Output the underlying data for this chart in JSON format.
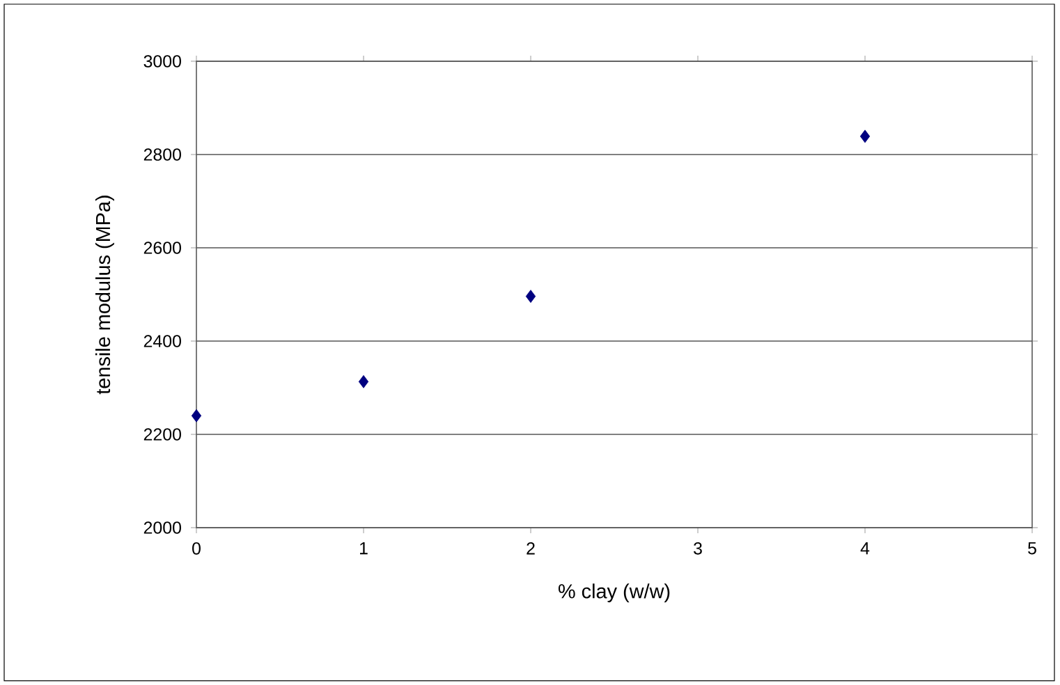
{
  "chart_data": {
    "type": "scatter",
    "xlabel": "% clay (w/w)",
    "ylabel": "tensile modulus (MPa)",
    "x": [
      0,
      1,
      2,
      4
    ],
    "series": [
      {
        "color": "#000080",
        "values": [
          2240,
          2313,
          2496,
          2839
        ]
      }
    ],
    "xlim": [
      0,
      5
    ],
    "ylim": [
      2000,
      3000
    ],
    "xticks": [
      0,
      1,
      2,
      3,
      4,
      5
    ],
    "yticks": [
      2000,
      2200,
      2400,
      2600,
      2800,
      3000
    ],
    "grid": "y",
    "marker": "diamond"
  }
}
